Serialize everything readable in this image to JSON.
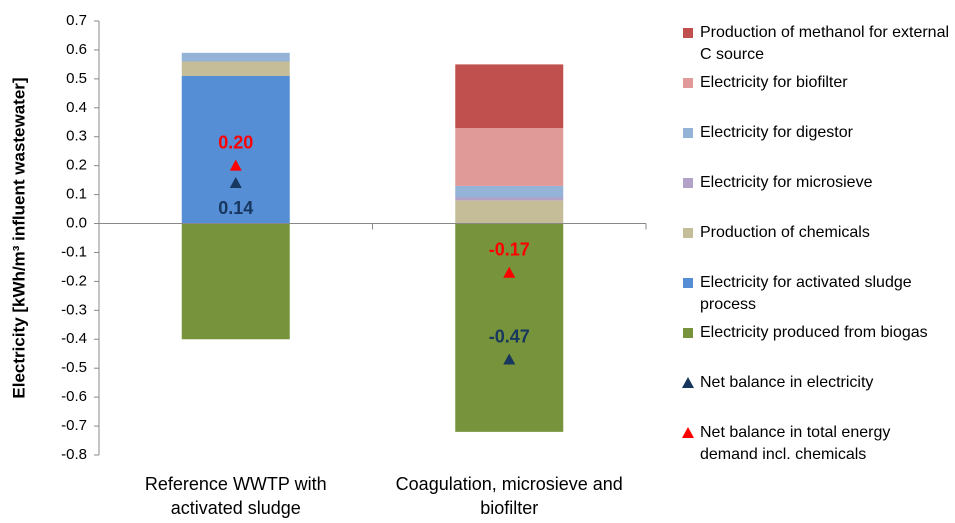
{
  "chart_data": {
    "type": "bar",
    "stacked": true,
    "ylabel": "Electricity [kWh/m³ influent wastewater]",
    "categories": [
      "Reference WWTP with activated sludge",
      "Coagulation, microsieve and biofilter"
    ],
    "ylim": [
      -0.8,
      0.7
    ],
    "yticks": [
      0.7,
      0.6,
      0.5,
      0.4,
      0.3,
      0.2,
      0.1,
      {
        "value": 0,
        "label": "0.0"
      },
      -0.1,
      -0.2,
      -0.3,
      -0.4,
      -0.5,
      -0.6,
      -0.7,
      -0.8
    ],
    "series": [
      {
        "name": "Production of methanol for external C source",
        "color": "#c0504d",
        "values": [
          null,
          0.22
        ]
      },
      {
        "name": "Electricity for biofilter",
        "color": "#e09a98",
        "values": [
          null,
          0.2
        ]
      },
      {
        "name": "Electricity for digestor",
        "color": "#95b3d7",
        "values": [
          0.03,
          0.04
        ]
      },
      {
        "name": "Electricity for microsieve",
        "color": "#b3a2c7",
        "values": [
          null,
          0.01
        ]
      },
      {
        "name": "Production of chemicals",
        "color": "#c4bd97",
        "values": [
          0.05,
          0.08
        ]
      },
      {
        "name": "Electricity for activated sludge process",
        "color": "#558ed5",
        "values": [
          0.51,
          null
        ]
      },
      {
        "name": "Electricity produced from biogas",
        "color": "#77933c",
        "values": [
          -0.4,
          -0.72
        ]
      },
      {
        "name": "Net balance in electricity",
        "color": "#17375e",
        "type": "marker",
        "values": [
          0.14,
          -0.47
        ]
      },
      {
        "name": "Net balance in total energy demand incl. chemicals",
        "color": "#ff0000",
        "type": "marker",
        "values": [
          0.2,
          -0.17
        ],
        "value_labels": [
          "0.20",
          "-0.17"
        ]
      }
    ]
  }
}
